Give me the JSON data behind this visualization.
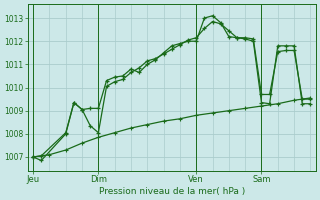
{
  "bg_color": "#cce8e8",
  "grid_color": "#aacccc",
  "line_color": "#1a6b1a",
  "ylabel_text": "Pression niveau de la mer( hPa )",
  "xtick_labels": [
    "Jeu",
    "Dim",
    "Ven",
    "Sam"
  ],
  "xtick_positions": [
    0,
    24,
    60,
    84
  ],
  "ylim": [
    1006.4,
    1013.6
  ],
  "xlim": [
    -2,
    104
  ],
  "yticks": [
    1007,
    1008,
    1009,
    1010,
    1011,
    1012,
    1013
  ],
  "line1_x": [
    0,
    3,
    12,
    15,
    18,
    21,
    24,
    27,
    30,
    33,
    36,
    39,
    42,
    45,
    48,
    51,
    54,
    57,
    60,
    63,
    66,
    69,
    72,
    75,
    78,
    81,
    84,
    87,
    90,
    93,
    96,
    99,
    102
  ],
  "line1_y": [
    1007.0,
    1006.85,
    1008.0,
    1009.35,
    1009.05,
    1009.1,
    1009.1,
    1010.3,
    1010.45,
    1010.5,
    1010.8,
    1010.65,
    1011.0,
    1011.2,
    1011.5,
    1011.8,
    1011.9,
    1012.0,
    1012.0,
    1013.0,
    1013.1,
    1012.8,
    1012.2,
    1012.15,
    1012.1,
    1012.0,
    1009.35,
    1009.3,
    1011.8,
    1011.8,
    1011.8,
    1009.3,
    1009.3
  ],
  "line2_x": [
    0,
    3,
    12,
    15,
    18,
    21,
    24,
    27,
    30,
    33,
    36,
    39,
    42,
    45,
    48,
    51,
    54,
    57,
    60,
    63,
    66,
    69,
    72,
    75,
    78,
    81,
    84,
    87,
    90,
    93,
    96,
    99,
    102
  ],
  "line2_y": [
    1007.0,
    1007.05,
    1008.05,
    1009.35,
    1009.05,
    1008.35,
    1008.05,
    1010.05,
    1010.25,
    1010.35,
    1010.65,
    1010.85,
    1011.15,
    1011.25,
    1011.45,
    1011.65,
    1011.85,
    1012.05,
    1012.15,
    1012.55,
    1012.85,
    1012.75,
    1012.45,
    1012.15,
    1012.15,
    1012.1,
    1009.7,
    1009.7,
    1011.55,
    1011.6,
    1011.6,
    1009.5,
    1009.5
  ],
  "line3_x": [
    0,
    6,
    12,
    18,
    24,
    30,
    36,
    42,
    48,
    54,
    60,
    66,
    72,
    78,
    84,
    90,
    96,
    102
  ],
  "line3_y": [
    1007.0,
    1007.1,
    1007.3,
    1007.6,
    1007.85,
    1008.05,
    1008.25,
    1008.4,
    1008.55,
    1008.65,
    1008.8,
    1008.9,
    1009.0,
    1009.1,
    1009.2,
    1009.3,
    1009.45,
    1009.55
  ],
  "vline_x": [
    0,
    24,
    60,
    84
  ]
}
